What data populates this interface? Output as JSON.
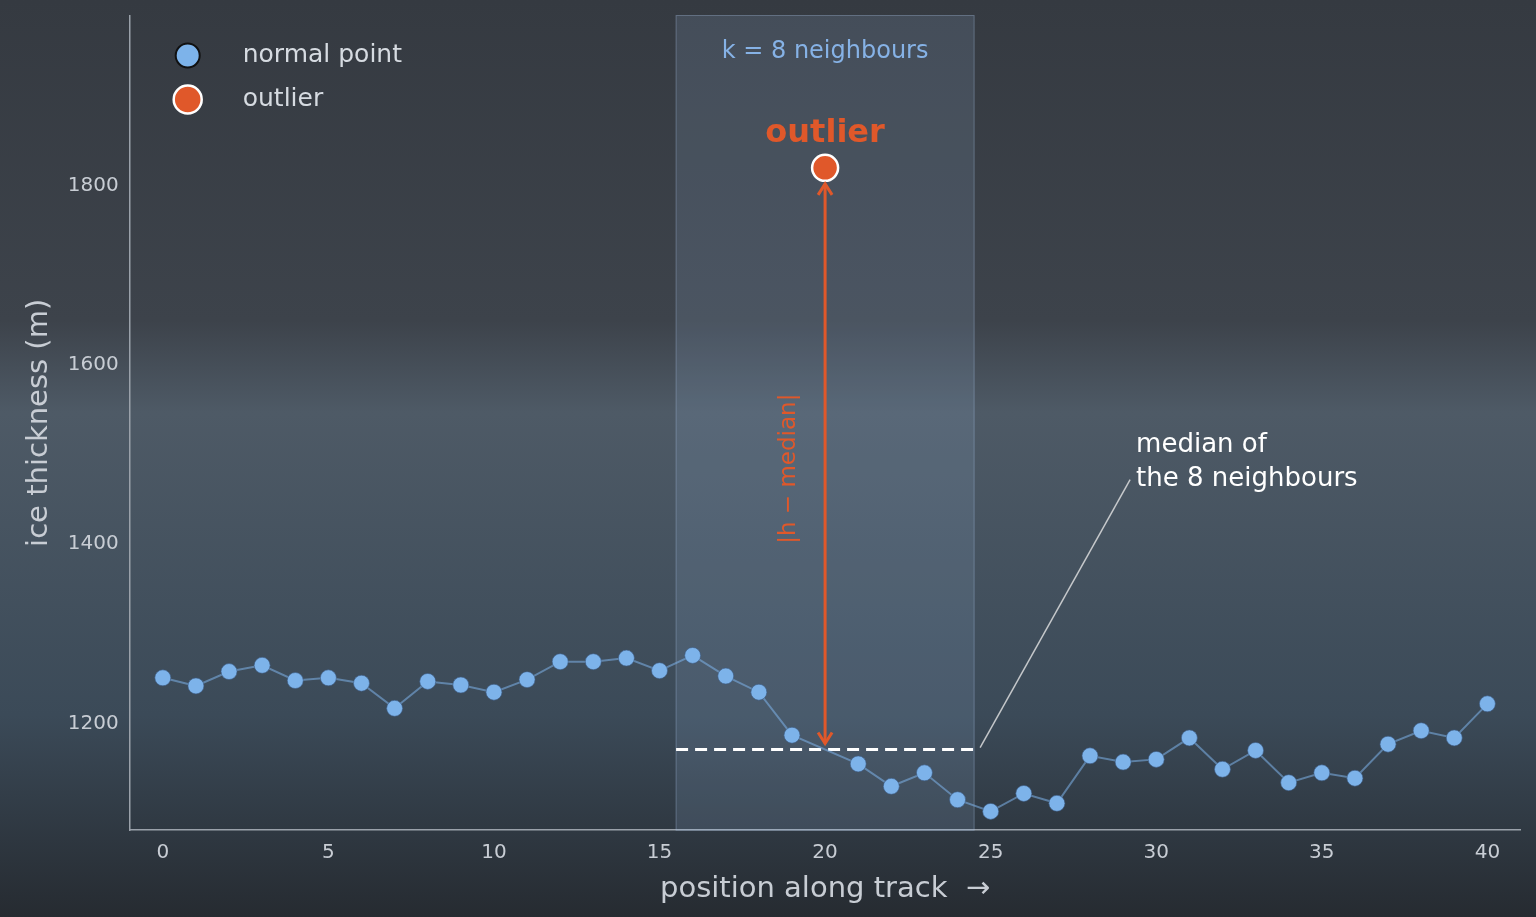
{
  "chart_data": {
    "type": "line",
    "x": [
      0,
      1,
      2,
      3,
      4,
      5,
      6,
      7,
      8,
      9,
      10,
      11,
      12,
      13,
      14,
      15,
      16,
      17,
      18,
      19,
      20,
      21,
      22,
      23,
      24,
      25,
      26,
      27,
      28,
      29,
      30,
      31,
      32,
      33,
      34,
      35,
      36,
      37,
      38,
      39,
      40
    ],
    "series": [
      {
        "name": "normal point",
        "color": "#7db3ea",
        "marker": "circle",
        "line_style": "solid",
        "values": [
          1251,
          1242,
          1258,
          1265,
          1248,
          1251,
          1245,
          1217,
          1247,
          1243,
          1235,
          1249,
          1269,
          1269,
          1273,
          1259,
          1276,
          1253,
          1235,
          1187,
          null,
          1155,
          1130,
          1145,
          1115,
          1102,
          1122,
          1111,
          1164,
          1157,
          1160,
          1184,
          1149,
          1170,
          1134,
          1145,
          1139,
          1177,
          1192,
          1184,
          1222
        ]
      },
      {
        "name": "outlier",
        "color": "#e0582a",
        "marker": "circle",
        "line_style": "none",
        "values": [
          null,
          null,
          null,
          null,
          null,
          null,
          null,
          null,
          null,
          null,
          null,
          null,
          null,
          null,
          null,
          null,
          null,
          null,
          null,
          null,
          1820,
          null,
          null,
          null,
          null,
          null,
          null,
          null,
          null,
          null,
          null,
          null,
          null,
          null,
          null,
          null,
          null,
          null,
          null,
          null,
          null
        ]
      }
    ],
    "xlabel": "position along track  →",
    "ylabel": "ice thickness (m)",
    "xlim": [
      -1,
      41
    ],
    "ylim": [
      1081,
      1990
    ],
    "xticks": [
      0,
      5,
      10,
      15,
      20,
      25,
      30,
      35,
      40
    ],
    "yticks": [
      1200,
      1400,
      1600,
      1800
    ],
    "grid": false,
    "legend": "upper left",
    "annotations": {
      "window": {
        "x": [
          15.5,
          24.5
        ],
        "label": "k = 8 neighbours"
      },
      "outlier_label": "outlier",
      "arrow_label": "|h − median|",
      "median": {
        "value": 1171,
        "x": [
          15.5,
          24.5
        ],
        "label": [
          "median of",
          "the 8 neighbours"
        ]
      }
    }
  }
}
